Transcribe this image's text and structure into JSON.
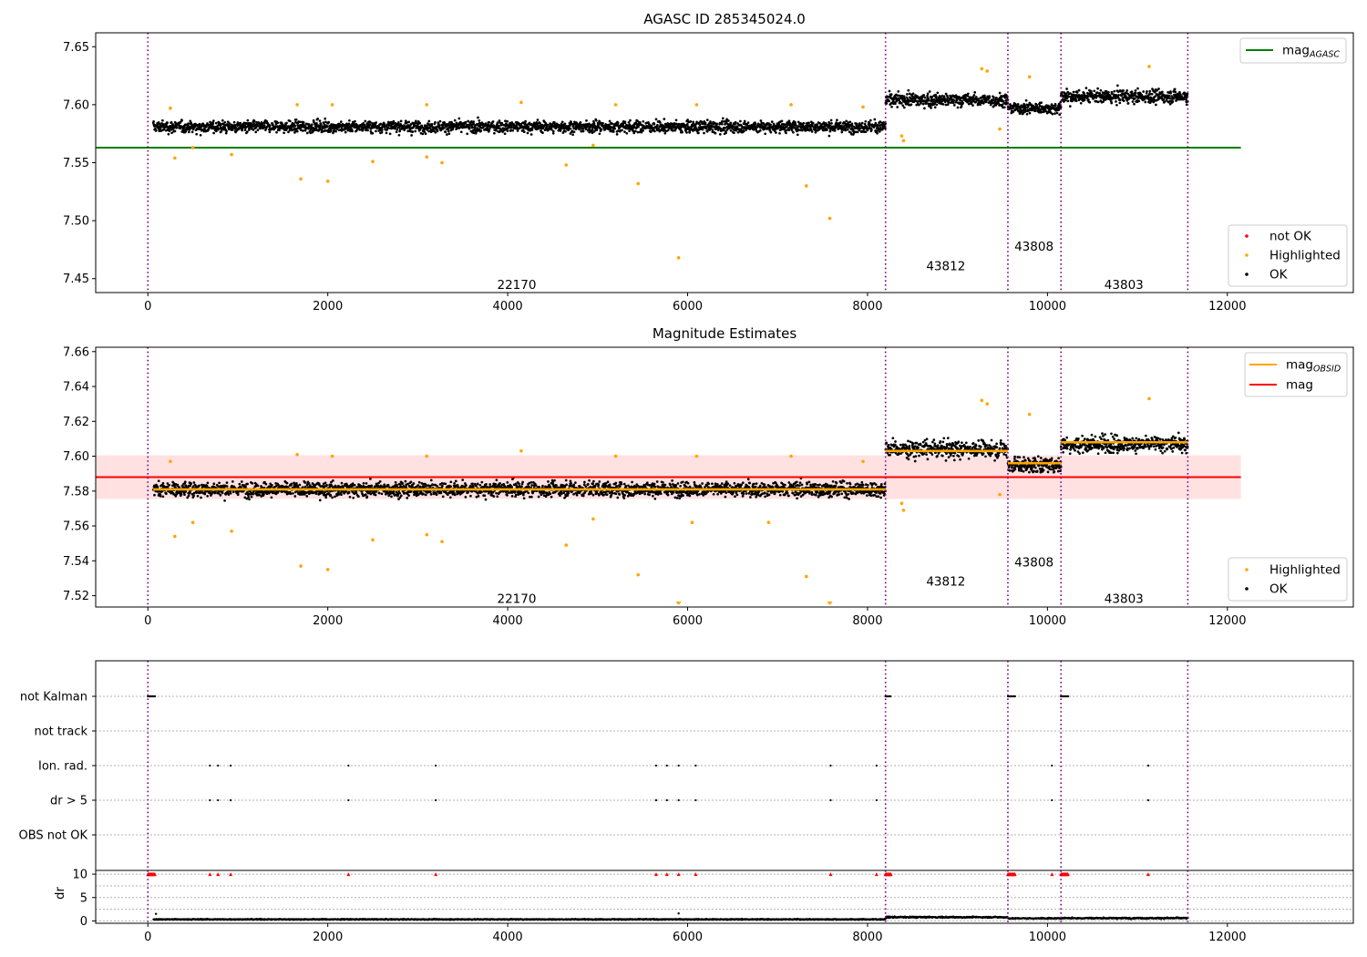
{
  "figure": {
    "title_top": "AGASC ID 285345024.0",
    "title_middle": "Magnitude Estimates"
  },
  "chart_data": [
    {
      "type": "scatter",
      "title": "AGASC ID 285345024.0",
      "xlim": [
        -580,
        13400
      ],
      "ylim": [
        7.438,
        7.662
      ],
      "xticks": [
        0,
        2000,
        4000,
        6000,
        8000,
        10000,
        12000
      ],
      "yticks": [
        7.45,
        7.5,
        7.55,
        7.6,
        7.65
      ],
      "ytick_labels": [
        "7.45",
        "7.50",
        "7.55",
        "7.60",
        "7.65"
      ],
      "obs_boundaries": [
        0,
        8200,
        9560,
        10150,
        11560
      ],
      "obs_labels": [
        {
          "text": "22170",
          "x": 4100,
          "y": 7.445
        },
        {
          "text": "43812",
          "x": 8870,
          "y": 7.461
        },
        {
          "text": "43808",
          "x": 9850,
          "y": 7.478
        },
        {
          "text": "43803",
          "x": 10850,
          "y": 7.445
        }
      ],
      "lines": [
        {
          "name": "mag",
          "sub": "AGASC",
          "color": "#008000",
          "x": [
            -580,
            12150
          ],
          "y": [
            7.563,
            7.563
          ]
        }
      ],
      "ok_segments": [
        {
          "x_start": 60,
          "x_end": 8200,
          "mean": 7.581,
          "spread": 0.009
        },
        {
          "x_start": 8200,
          "x_end": 9560,
          "mean": 7.604,
          "spread": 0.01
        },
        {
          "x_start": 9560,
          "x_end": 10150,
          "mean": 7.597,
          "spread": 0.009
        },
        {
          "x_start": 10150,
          "x_end": 11560,
          "mean": 7.607,
          "spread": 0.01
        }
      ],
      "highlighted": [
        [
          250,
          7.597
        ],
        [
          300,
          7.554
        ],
        [
          500,
          7.563
        ],
        [
          930,
          7.557
        ],
        [
          1700,
          7.536
        ],
        [
          2000,
          7.534
        ],
        [
          2500,
          7.551
        ],
        [
          3100,
          7.555
        ],
        [
          3270,
          7.55
        ],
        [
          4650,
          7.548
        ],
        [
          5450,
          7.532
        ],
        [
          5900,
          7.468
        ],
        [
          7320,
          7.53
        ],
        [
          7580,
          7.502
        ],
        [
          1660,
          7.6
        ],
        [
          2050,
          7.6
        ],
        [
          3100,
          7.6
        ],
        [
          4150,
          7.602
        ],
        [
          5200,
          7.6
        ],
        [
          6100,
          7.6
        ],
        [
          7150,
          7.6
        ],
        [
          7950,
          7.598
        ],
        [
          8380,
          7.573
        ],
        [
          8400,
          7.569
        ],
        [
          9470,
          7.579
        ],
        [
          9270,
          7.631
        ],
        [
          9330,
          7.629
        ],
        [
          9800,
          7.624
        ],
        [
          11130,
          7.633
        ],
        [
          4950,
          7.565
        ]
      ],
      "legend_lines": [
        {
          "label": "mag",
          "sub": "AGASC",
          "color": "#008000"
        }
      ],
      "legend_markers": [
        {
          "label": "not OK",
          "color": "#ff0000"
        },
        {
          "label": "Highlighted",
          "color": "#ffa500"
        },
        {
          "label": "OK",
          "color": "#000000"
        }
      ]
    },
    {
      "type": "scatter",
      "title": "Magnitude Estimates",
      "xlim": [
        -580,
        13400
      ],
      "ylim": [
        7.5135,
        7.6625
      ],
      "xticks": [
        0,
        2000,
        4000,
        6000,
        8000,
        10000,
        12000
      ],
      "yticks": [
        7.52,
        7.54,
        7.56,
        7.58,
        7.6,
        7.62,
        7.64,
        7.66
      ],
      "ytick_labels": [
        "7.52",
        "7.54",
        "7.56",
        "7.58",
        "7.60",
        "7.62",
        "7.64",
        "7.66"
      ],
      "obs_boundaries": [
        0,
        8200,
        9560,
        10150,
        11560
      ],
      "obs_labels": [
        {
          "text": "22170",
          "x": 4100,
          "y": 7.5185
        },
        {
          "text": "43812",
          "x": 8870,
          "y": 7.5285
        },
        {
          "text": "43808",
          "x": 9850,
          "y": 7.5395
        },
        {
          "text": "43803",
          "x": 10850,
          "y": 7.5185
        }
      ],
      "band": {
        "x_start": -580,
        "x_end": 12150,
        "y_low": 7.5755,
        "y_high": 7.6005,
        "color": "#ffc8c8"
      },
      "lines": [
        {
          "name": "mag",
          "color": "#ff0000",
          "x": [
            -580,
            12150
          ],
          "y": [
            7.588,
            7.588
          ]
        }
      ],
      "obsid_means": [
        {
          "x_start": 60,
          "x_end": 8200,
          "y": 7.581
        },
        {
          "x_start": 8200,
          "x_end": 9560,
          "y": 7.603
        },
        {
          "x_start": 9560,
          "x_end": 10150,
          "y": 7.596
        },
        {
          "x_start": 10150,
          "x_end": 11560,
          "y": 7.608
        }
      ],
      "ok_segments": [
        {
          "x_start": 60,
          "x_end": 8200,
          "mean": 7.581,
          "spread": 0.0075
        },
        {
          "x_start": 8200,
          "x_end": 9560,
          "mean": 7.604,
          "spread": 0.0085
        },
        {
          "x_start": 9560,
          "x_end": 10150,
          "mean": 7.595,
          "spread": 0.008
        },
        {
          "x_start": 10150,
          "x_end": 11560,
          "mean": 7.607,
          "spread": 0.0085
        }
      ],
      "highlighted": [
        [
          250,
          7.597
        ],
        [
          300,
          7.554
        ],
        [
          500,
          7.562
        ],
        [
          930,
          7.557
        ],
        [
          1700,
          7.537
        ],
        [
          2000,
          7.535
        ],
        [
          2500,
          7.552
        ],
        [
          3100,
          7.555
        ],
        [
          3270,
          7.551
        ],
        [
          4650,
          7.549
        ],
        [
          5450,
          7.532
        ],
        [
          7320,
          7.531
        ],
        [
          1660,
          7.601
        ],
        [
          2050,
          7.6
        ],
        [
          3100,
          7.6
        ],
        [
          4150,
          7.603
        ],
        [
          5200,
          7.6
        ],
        [
          6100,
          7.6
        ],
        [
          7150,
          7.6
        ],
        [
          7950,
          7.597
        ],
        [
          8380,
          7.573
        ],
        [
          8400,
          7.569
        ],
        [
          9470,
          7.578
        ],
        [
          9270,
          7.632
        ],
        [
          9330,
          7.63
        ],
        [
          9800,
          7.624
        ],
        [
          11130,
          7.633
        ],
        [
          4950,
          7.564
        ],
        [
          6050,
          7.562
        ],
        [
          6900,
          7.562
        ]
      ],
      "highlighted_offscale": [
        [
          5900,
          7.515
        ],
        [
          7580,
          7.515
        ]
      ],
      "legend_lines": [
        {
          "label": "mag",
          "sub": "OBSID",
          "color": "#ffa500"
        },
        {
          "label": "mag",
          "sub": "",
          "color": "#ff0000"
        }
      ],
      "legend_markers": [
        {
          "label": "Highlighted",
          "color": "#ffa500"
        },
        {
          "label": "OK",
          "color": "#000000"
        }
      ]
    },
    {
      "type": "scatter",
      "title": "",
      "xlim": [
        -580,
        13400
      ],
      "flag_rows": [
        "not Kalman",
        "not track",
        "Ion. rad.",
        "dr > 5",
        "OBS not OK"
      ],
      "flag_points": {
        "not Kalman": [
          [
            0,
            80
          ],
          [
            8200,
            8260
          ],
          [
            9560,
            9640
          ],
          [
            10150,
            10230
          ]
        ],
        "not track": [],
        "Ion. rad.": [
          690,
          780,
          920,
          2230,
          3200,
          5650,
          5770,
          5900,
          6090,
          7590,
          8100,
          10050,
          11120
        ],
        "dr > 5": [
          690,
          780,
          920,
          2230,
          3200,
          5650,
          5770,
          5900,
          6090,
          7590,
          8100,
          10050,
          11120
        ],
        "OBS not OK": []
      },
      "dr_ylim": [
        -0.5,
        10.8
      ],
      "dr_yticks": [
        0,
        5,
        10
      ],
      "dr_ylabel": "dr",
      "dr_threshold": 10,
      "dr_clipped_runs": [
        [
          0,
          80
        ],
        [
          8200,
          8260
        ],
        [
          9560,
          9640
        ],
        [
          10150,
          10230
        ]
      ],
      "dr_clipped_points": [
        690,
        780,
        920,
        2230,
        3200,
        5650,
        5770,
        5900,
        6090,
        7590,
        8100,
        10050,
        11120
      ],
      "dr_segments": [
        {
          "x_start": 60,
          "x_end": 8200,
          "mean": 0.35,
          "spread": 0.15
        },
        {
          "x_start": 8200,
          "x_end": 9560,
          "mean": 0.8,
          "spread": 0.25
        },
        {
          "x_start": 9560,
          "x_end": 10150,
          "mean": 0.55,
          "spread": 0.2
        },
        {
          "x_start": 10150,
          "x_end": 11560,
          "mean": 0.6,
          "spread": 0.25
        }
      ],
      "dr_outliers": [
        [
          90,
          1.5
        ],
        [
          5900,
          1.6
        ]
      ]
    }
  ]
}
